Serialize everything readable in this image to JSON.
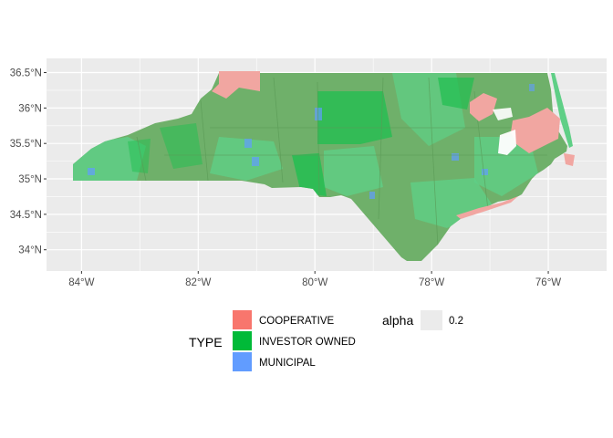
{
  "chart_data": {
    "type": "map",
    "region": "North Carolina",
    "x_axis": {
      "ticks": [
        {
          "value": -84,
          "label": "84°W"
        },
        {
          "value": -82,
          "label": "82°W"
        },
        {
          "value": -80,
          "label": "80°W"
        },
        {
          "value": -78,
          "label": "78°W"
        },
        {
          "value": -76,
          "label": "76°W"
        }
      ],
      "range": [
        -84.6,
        -75.0
      ]
    },
    "y_axis": {
      "ticks": [
        {
          "value": 34.0,
          "label": "34°N"
        },
        {
          "value": 34.5,
          "label": "34.5°N"
        },
        {
          "value": 35.0,
          "label": "35°N"
        },
        {
          "value": 35.5,
          "label": "35.5°N"
        },
        {
          "value": 36.0,
          "label": "36°N"
        },
        {
          "value": 36.5,
          "label": "36.5°N"
        }
      ],
      "range": [
        33.7,
        36.7
      ]
    },
    "grid": true,
    "legend_position": "bottom",
    "colors": {
      "panel": "#EBEBEB",
      "grid": "#FFFFFF",
      "cooperative": "#F8766D",
      "investor_owned": "#00BA38",
      "municipal": "#619CFF",
      "base_green": "#6FB06A",
      "light_green": "#5FCF86",
      "dark_green": "#1FBF50",
      "coop_fill": "#F1A6A1",
      "alpha_key": "#EBEBEB"
    },
    "legend": {
      "fill_title": "TYPE",
      "fill_entries": [
        {
          "label": "COOPERATIVE",
          "color": "#F8766D"
        },
        {
          "label": "INVESTOR OWNED",
          "color": "#00BA38"
        },
        {
          "label": "MUNICIPAL",
          "color": "#619CFF"
        }
      ],
      "alpha_title": "alpha",
      "alpha_entries": [
        {
          "label": "0.2"
        }
      ]
    }
  }
}
